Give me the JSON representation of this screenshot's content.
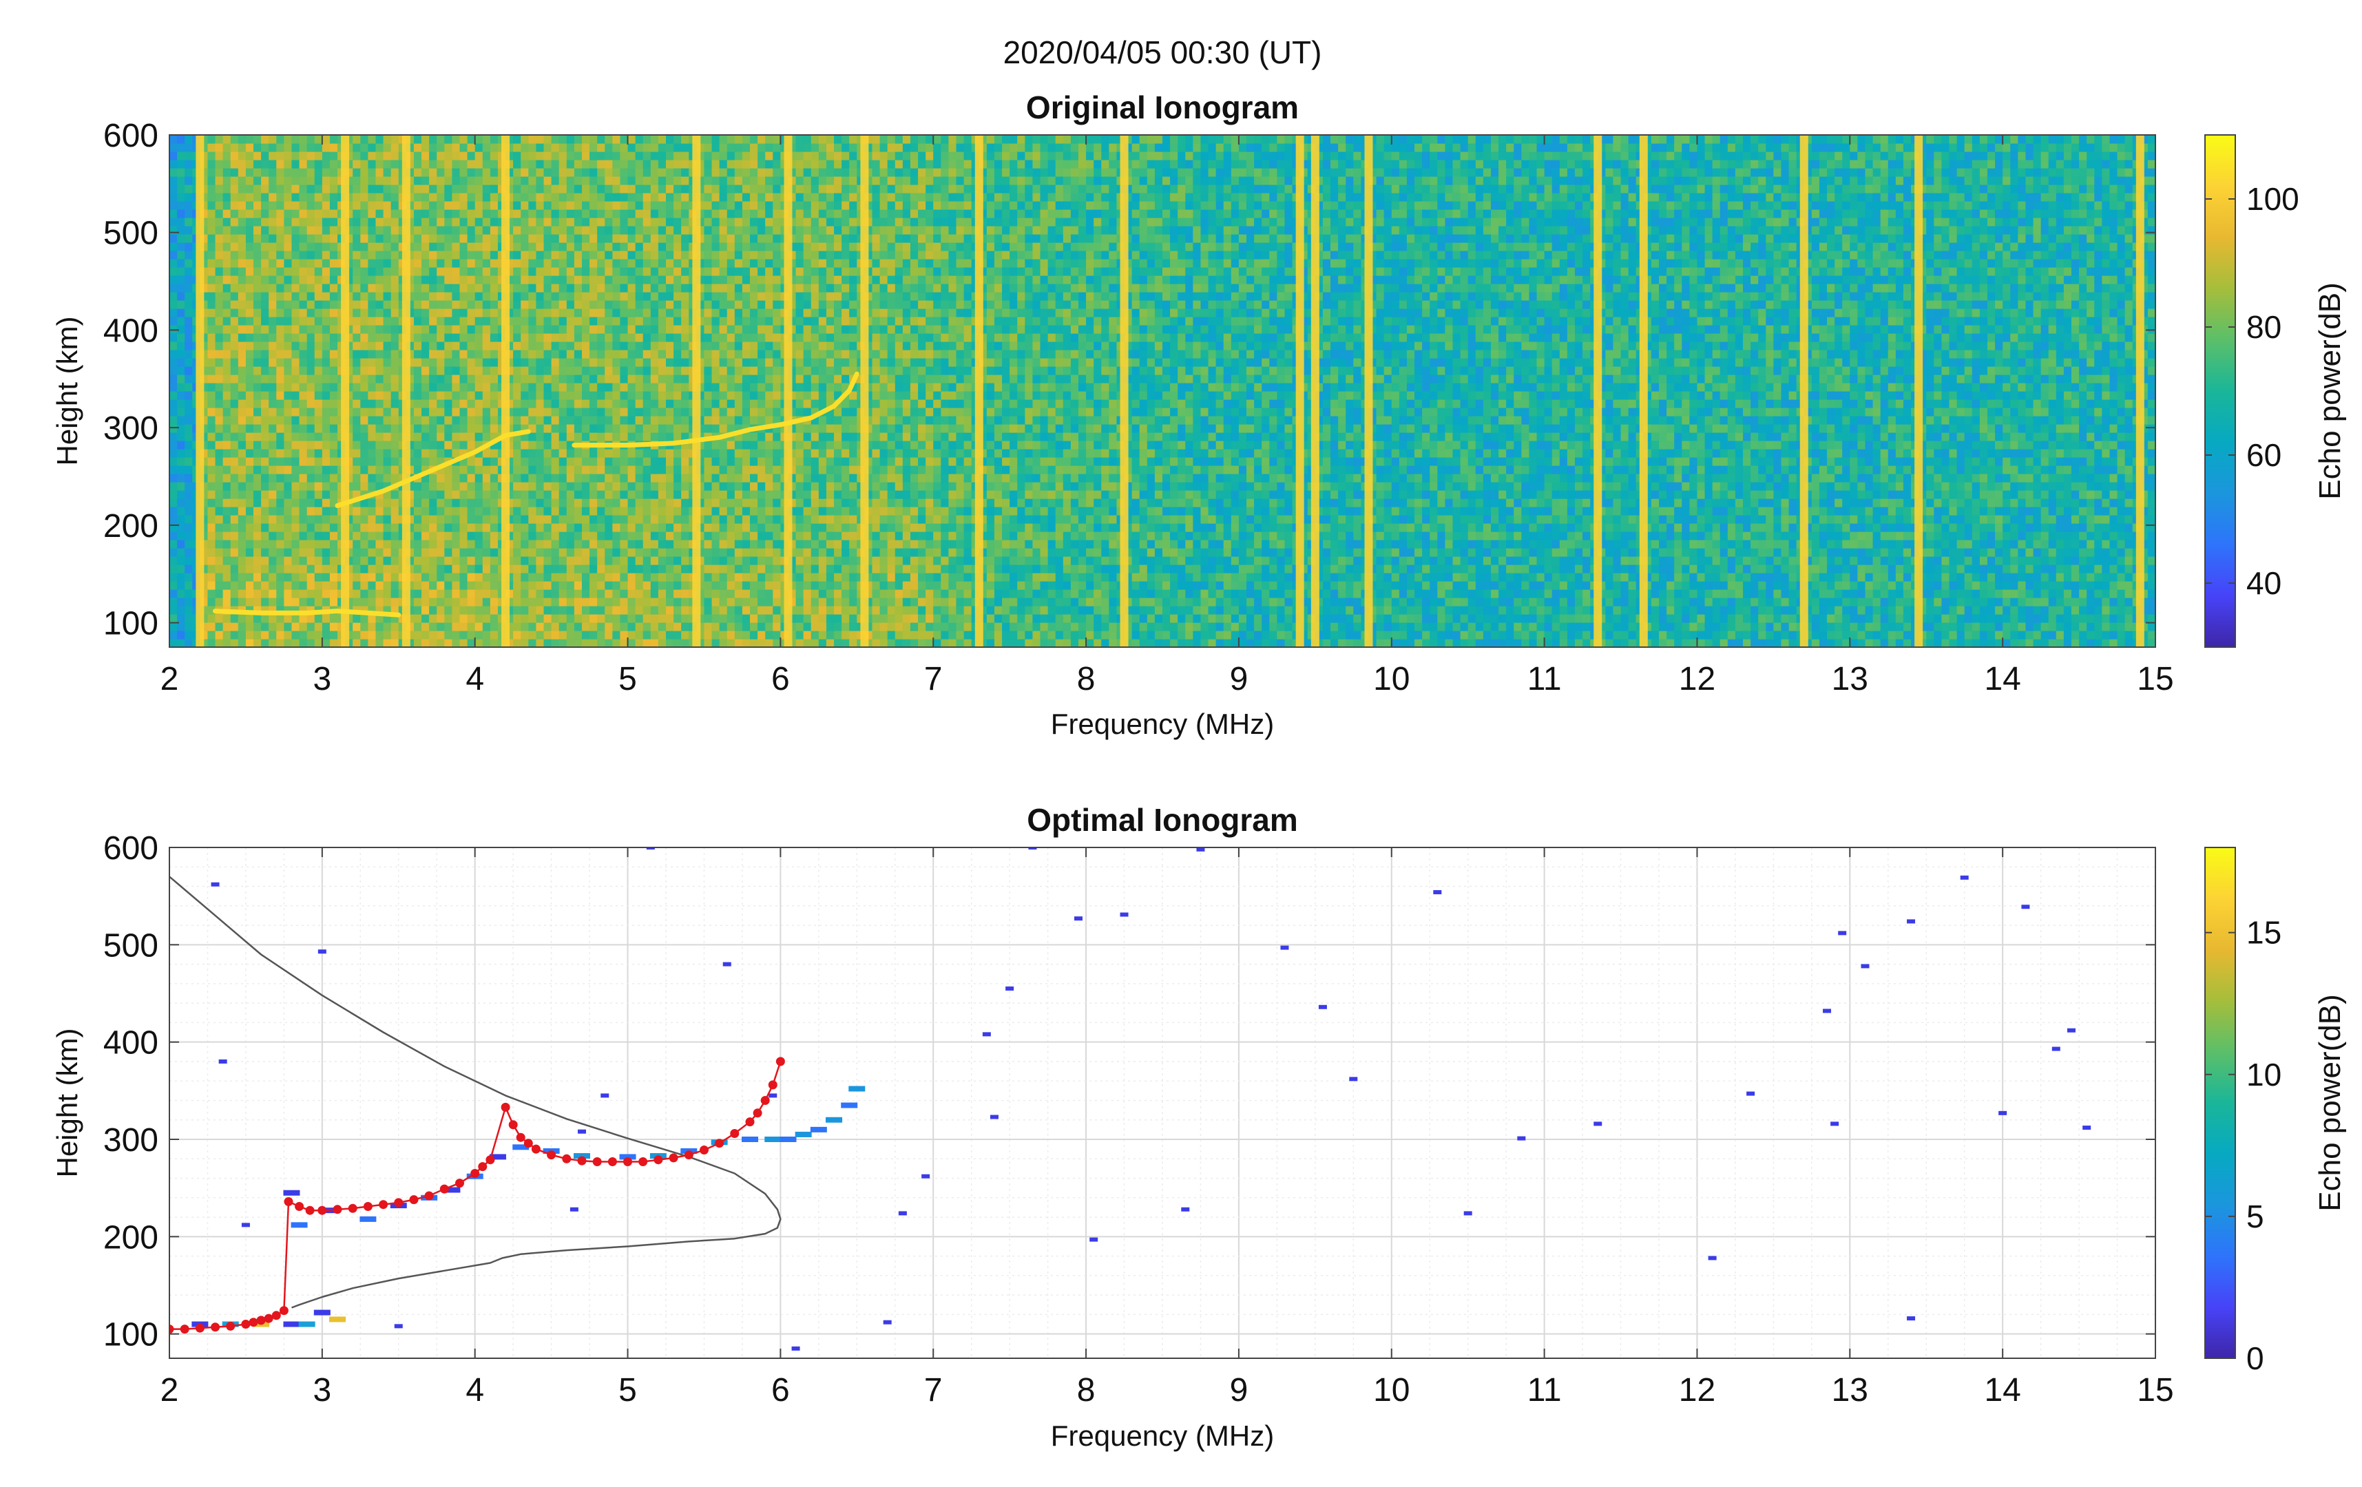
{
  "figure": {
    "suptitle": "2020/04/05 00:30 (UT)"
  },
  "chart_data": [
    {
      "type": "heatmap",
      "title": "Original Ionogram",
      "xlabel": "Frequency (MHz)",
      "ylabel": "Height (km)",
      "xlim": [
        2,
        15
      ],
      "ylim": [
        75,
        600
      ],
      "xticks": [
        2,
        3,
        4,
        5,
        6,
        7,
        8,
        9,
        10,
        11,
        12,
        13,
        14,
        15
      ],
      "yticks": [
        100,
        200,
        300,
        400,
        500,
        600
      ],
      "grid": false,
      "colorbar": {
        "label": "Echo power(dB)",
        "range": [
          30,
          110
        ],
        "ticks": [
          40,
          60,
          80,
          100
        ]
      },
      "colormap": [
        "#3e26a8",
        "#4743f8",
        "#2e74fb",
        "#1b96dd",
        "#07a9c2",
        "#1ab699",
        "#5bbf69",
        "#a5be3b",
        "#e8b831",
        "#fcd334",
        "#f9fb15"
      ],
      "interference_lines_mhz": [
        2.2,
        3.15,
        3.55,
        4.2,
        5.45,
        6.05,
        6.55,
        7.3,
        8.25,
        9.4,
        9.5,
        9.85,
        11.35,
        11.65,
        12.7,
        13.45,
        14.9
      ],
      "echo_traces": [
        {
          "name": "E trace",
          "x": [
            2.3,
            2.6,
            2.9,
            3.1,
            3.3,
            3.5
          ],
          "y": [
            112,
            110,
            110,
            112,
            110,
            108
          ]
        },
        {
          "name": "F low trace",
          "x": [
            3.1,
            3.4,
            3.7,
            4.0,
            4.2,
            4.35
          ],
          "y": [
            220,
            235,
            255,
            275,
            292,
            296
          ]
        },
        {
          "name": "F2 trace",
          "x": [
            4.65,
            5.0,
            5.3,
            5.6,
            5.8,
            6.0,
            6.2,
            6.35,
            6.45,
            6.5
          ],
          "y": [
            282,
            282,
            284,
            290,
            298,
            303,
            310,
            322,
            338,
            355
          ]
        }
      ]
    },
    {
      "type": "scatter",
      "title": "Optimal Ionogram",
      "xlabel": "Frequency (MHz)",
      "ylabel": "Height (km)",
      "xlim": [
        2,
        15
      ],
      "ylim": [
        75,
        600
      ],
      "xticks": [
        2,
        3,
        4,
        5,
        6,
        7,
        8,
        9,
        10,
        11,
        12,
        13,
        14,
        15
      ],
      "yticks": [
        100,
        200,
        300,
        400,
        500,
        600
      ],
      "grid": true,
      "colorbar": {
        "label": "Echo power(dB)",
        "range": [
          0,
          18
        ],
        "ticks": [
          0,
          5,
          10,
          15
        ]
      },
      "colormap": [
        "#3e26a8",
        "#4743f8",
        "#2e74fb",
        "#1b96dd",
        "#07a9c2",
        "#1ab699",
        "#5bbf69",
        "#a5be3b",
        "#e8b831",
        "#fcd334",
        "#f9fb15"
      ],
      "noise_echoes": [
        [
          2.3,
          562
        ],
        [
          2.35,
          380
        ],
        [
          2.5,
          212
        ],
        [
          3.0,
          493
        ],
        [
          3.5,
          108
        ],
        [
          4.65,
          228
        ],
        [
          4.7,
          308
        ],
        [
          4.85,
          345
        ],
        [
          5.15,
          600
        ],
        [
          5.65,
          480
        ],
        [
          5.95,
          345
        ],
        [
          6.1,
          85
        ],
        [
          6.7,
          112
        ],
        [
          6.8,
          224
        ],
        [
          6.95,
          262
        ],
        [
          7.35,
          408
        ],
        [
          7.4,
          323
        ],
        [
          7.5,
          455
        ],
        [
          7.65,
          600
        ],
        [
          7.95,
          527
        ],
        [
          8.05,
          197
        ],
        [
          8.25,
          531
        ],
        [
          8.65,
          228
        ],
        [
          8.75,
          598
        ],
        [
          9.3,
          497
        ],
        [
          9.55,
          436
        ],
        [
          9.75,
          362
        ],
        [
          10.3,
          554
        ],
        [
          10.5,
          224
        ],
        [
          10.85,
          301
        ],
        [
          11.35,
          316
        ],
        [
          12.1,
          178
        ],
        [
          12.35,
          347
        ],
        [
          12.85,
          432
        ],
        [
          12.9,
          316
        ],
        [
          12.95,
          512
        ],
        [
          13.1,
          478
        ],
        [
          13.4,
          524
        ],
        [
          13.4,
          116
        ],
        [
          13.75,
          569
        ],
        [
          14.0,
          327
        ],
        [
          14.15,
          539
        ],
        [
          14.35,
          393
        ],
        [
          14.45,
          412
        ],
        [
          14.55,
          312
        ]
      ],
      "trace_echoes": {
        "E": [
          [
            2.2,
            110
          ],
          [
            2.4,
            110
          ],
          [
            2.6,
            110
          ],
          [
            2.8,
            110
          ],
          [
            2.9,
            110
          ],
          [
            3.1,
            115
          ],
          [
            3.0,
            122
          ]
        ],
        "F1": [
          [
            2.8,
            245
          ],
          [
            2.85,
            212
          ],
          [
            3.05,
            227
          ],
          [
            3.3,
            218
          ],
          [
            3.5,
            232
          ],
          [
            3.7,
            240
          ],
          [
            3.85,
            248
          ],
          [
            4.0,
            262
          ],
          [
            4.15,
            282
          ],
          [
            4.3,
            292
          ]
        ],
        "F2": [
          [
            4.5,
            288
          ],
          [
            4.7,
            283
          ],
          [
            5.0,
            282
          ],
          [
            5.2,
            283
          ],
          [
            5.4,
            288
          ],
          [
            5.6,
            297
          ],
          [
            5.8,
            300
          ],
          [
            5.95,
            300
          ],
          [
            6.05,
            300
          ],
          [
            6.15,
            305
          ],
          [
            6.25,
            310
          ],
          [
            6.35,
            320
          ],
          [
            6.45,
            335
          ],
          [
            6.5,
            352
          ]
        ]
      },
      "scaled_trace": {
        "name": "scaled virtual height",
        "x": [
          2.0,
          2.1,
          2.2,
          2.3,
          2.4,
          2.5,
          2.55,
          2.6,
          2.65,
          2.7,
          2.75,
          2.78,
          2.85,
          2.92,
          3.0,
          3.1,
          3.2,
          3.3,
          3.4,
          3.5,
          3.6,
          3.7,
          3.8,
          3.9,
          4.0,
          4.05,
          4.1,
          4.2,
          4.25,
          4.3,
          4.35,
          4.4,
          4.5,
          4.6,
          4.7,
          4.8,
          4.9,
          5.0,
          5.1,
          5.2,
          5.3,
          5.4,
          5.5,
          5.6,
          5.7,
          5.8,
          5.85,
          5.9,
          5.95,
          6.0
        ],
        "y": [
          105,
          105,
          106,
          107,
          108,
          110,
          112,
          114,
          116,
          119,
          124,
          236,
          231,
          227,
          227,
          228,
          229,
          231,
          233,
          235,
          238,
          242,
          249,
          255,
          265,
          272,
          279,
          333,
          315,
          302,
          296,
          290,
          284,
          280,
          278,
          277,
          277,
          277,
          277,
          279,
          281,
          284,
          289,
          296,
          306,
          318,
          327,
          340,
          356,
          380
        ]
      },
      "profile_curve": {
        "name": "electron density profile",
        "x": [
          2.0,
          2.3,
          2.6,
          3.0,
          3.4,
          3.8,
          4.2,
          4.6,
          5.0,
          5.4,
          5.7,
          5.9,
          5.98,
          6.0,
          5.98,
          5.9,
          5.7,
          5.4,
          5.0,
          4.6,
          4.3,
          4.18,
          4.1,
          3.8,
          3.5,
          3.2,
          3.0,
          2.85,
          2.8
        ],
        "y": [
          570,
          530,
          490,
          448,
          410,
          375,
          345,
          321,
          301,
          282,
          265,
          244,
          228,
          218,
          209,
          203,
          198,
          195,
          190,
          186,
          182,
          178,
          173,
          165,
          157,
          147,
          138,
          130,
          127
        ]
      }
    }
  ]
}
